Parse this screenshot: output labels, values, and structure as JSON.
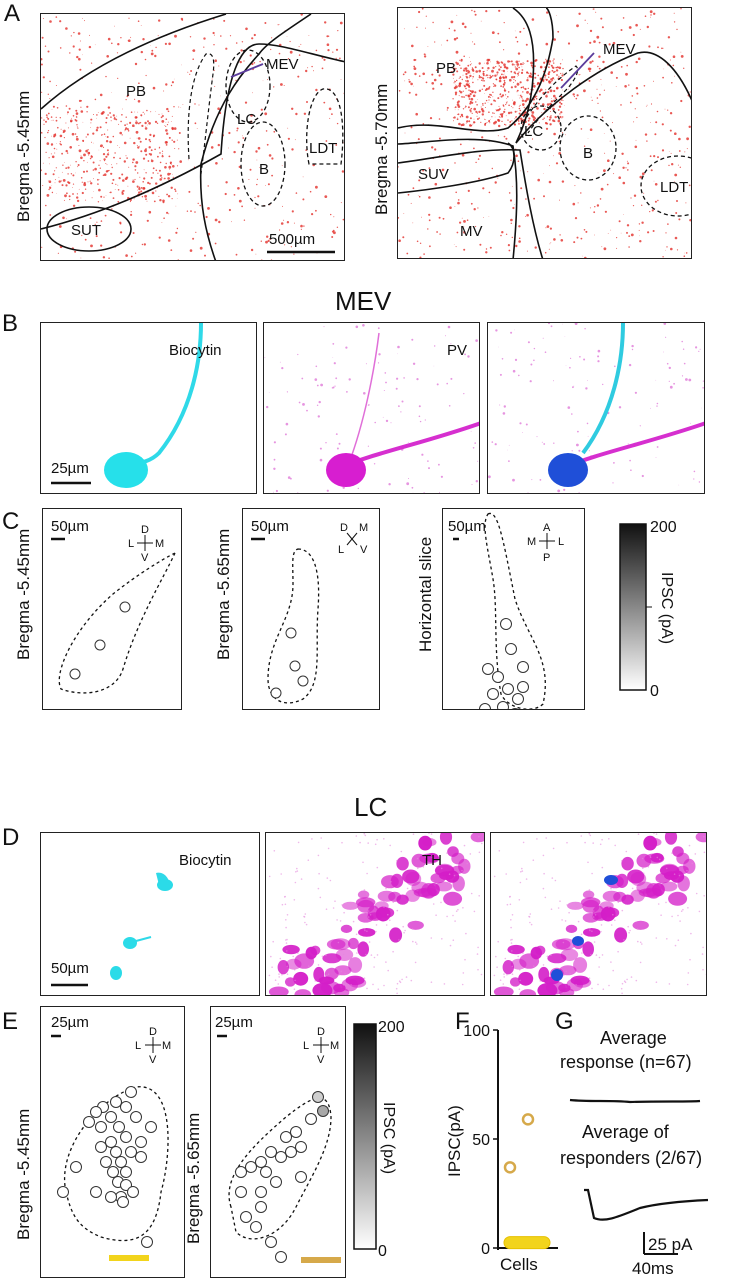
{
  "panel_letters": [
    "A",
    "B",
    "C",
    "D",
    "E",
    "F",
    "G"
  ],
  "panelA": {
    "left": {
      "bregma": "Bregma -5.45mm",
      "regions": [
        "PB",
        "MEV",
        "LC",
        "B",
        "LDT",
        "SUT"
      ],
      "scale": "500µm"
    },
    "right": {
      "bregma": "Bregma -5.70mm",
      "regions": [
        "PB",
        "MEV",
        "LC",
        "B",
        "SUV",
        "MV",
        "LDT"
      ]
    }
  },
  "panelB": {
    "title": "MEV",
    "channels": [
      "Biocytin",
      "PV"
    ],
    "scale": "25µm"
  },
  "panelC": {
    "slices": [
      {
        "bregma": "Bregma -5.45mm",
        "scale": "50µm",
        "axes": {
          "top": "D",
          "left": "L",
          "right": "M",
          "bottom": "V"
        }
      },
      {
        "bregma": "Bregma -5.65mm",
        "scale": "50µm",
        "axes": {
          "top": "D",
          "left": "L",
          "right": "M",
          "bottom": "V"
        }
      },
      {
        "bregma": "Horizontal slice",
        "scale": "50µm",
        "axes": {
          "top": "A",
          "left": "M",
          "right": "L",
          "bottom": "P"
        }
      }
    ],
    "colorbar": {
      "label": "IPSC (pA)",
      "max": "200",
      "min": "0"
    }
  },
  "panelD": {
    "title": "LC",
    "channels": [
      "Biocytin",
      "TH"
    ],
    "scale": "50µm"
  },
  "panelE": {
    "slices": [
      {
        "bregma": "Bregma -5.45mm",
        "scale": "25µm",
        "axes": {
          "top": "D",
          "left": "L",
          "right": "M",
          "bottom": "V"
        },
        "bar_color": "#f2d41c"
      },
      {
        "bregma": "Bregma -5.65mm",
        "scale": "25µm",
        "axes": {
          "top": "D",
          "left": "L",
          "right": "M",
          "bottom": "V"
        },
        "bar_color": "#d6a94a"
      }
    ],
    "colorbar": {
      "label": "IPSC (pA)",
      "max": "200",
      "min": "0"
    }
  },
  "panelF": {
    "ylabel": "IPSC(pA)",
    "xlabel": "Cells",
    "yticks": [
      "0",
      "50",
      "100"
    ]
  },
  "panelG": {
    "avg_all": "Average response (n=67)",
    "avg_all_line1": "Average",
    "avg_all_line2": "response (n=67)",
    "avg_resp_line1": "Average of",
    "avg_resp_line2": "responders (2/67)",
    "scale_y": "25 pA",
    "scale_x": "40ms"
  },
  "chart_data": {
    "type": "scatter",
    "title": "",
    "xlabel": "Cells",
    "ylabel": "IPSC(pA)",
    "ylim": [
      0,
      100
    ],
    "yticks": [
      0,
      50,
      100
    ],
    "points": [
      {
        "y": 37,
        "style": "open-orange"
      },
      {
        "y": 59,
        "style": "open-orange"
      },
      {
        "y": 2,
        "style": "filled-yellow-cluster"
      }
    ]
  }
}
